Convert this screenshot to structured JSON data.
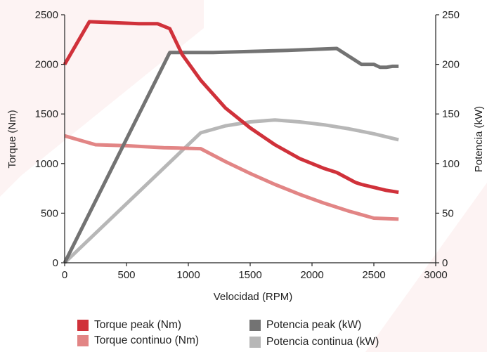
{
  "chart_data": {
    "type": "line",
    "xlabel": "Velocidad (RPM)",
    "ylabel": "Torque (Nm)",
    "ylabel_right": "Potencia (kW)",
    "xlim": [
      0,
      3000
    ],
    "ylim": [
      0,
      2500
    ],
    "ylim_right": [
      0,
      250
    ],
    "x_ticks": [
      "0",
      "500",
      "1000",
      "1500",
      "2000",
      "2500",
      "3000"
    ],
    "y_ticks": [
      "0",
      "500",
      "1000",
      "1500",
      "2000",
      "2500"
    ],
    "y_right_ticks": [
      "0",
      "50",
      "100",
      "150",
      "200",
      "250"
    ],
    "grid": false,
    "legend_position": "bottom",
    "series": [
      {
        "name": "Torque peak (Nm)",
        "axis": "left",
        "color": "#d0313a",
        "x": [
          0,
          200,
          400,
          600,
          750,
          850,
          950,
          1100,
          1300,
          1500,
          1700,
          1900,
          2100,
          2200,
          2350,
          2400,
          2500,
          2600,
          2700
        ],
        "y": [
          2000,
          2430,
          2420,
          2410,
          2410,
          2360,
          2100,
          1840,
          1560,
          1360,
          1190,
          1050,
          950,
          910,
          810,
          790,
          760,
          730,
          710
        ]
      },
      {
        "name": "Torque continuo (Nm)",
        "axis": "left",
        "color": "#e28585",
        "x": [
          0,
          250,
          500,
          800,
          1100,
          1300,
          1500,
          1700,
          1900,
          2100,
          2300,
          2500,
          2700
        ],
        "y": [
          1280,
          1190,
          1180,
          1160,
          1150,
          1020,
          900,
          790,
          690,
          600,
          520,
          450,
          440
        ]
      },
      {
        "name": "Potencia peak (kW)",
        "axis": "right",
        "color": "#737373",
        "x": [
          0,
          850,
          1000,
          1200,
          1500,
          1800,
          2000,
          2200,
          2400,
          2450,
          2500,
          2550,
          2600,
          2650,
          2700
        ],
        "y": [
          0,
          212,
          212,
          212,
          213,
          214,
          215,
          216,
          200,
          200,
          200,
          197,
          197,
          198,
          198
        ]
      },
      {
        "name": "Potencia continua (kW)",
        "axis": "right",
        "color": "#b7b7b7",
        "x": [
          0,
          1100,
          1300,
          1500,
          1700,
          1900,
          2100,
          2300,
          2500,
          2700
        ],
        "y": [
          0,
          131,
          138,
          142,
          144,
          142,
          139,
          135,
          130,
          124
        ]
      }
    ]
  },
  "legend": {
    "items": [
      {
        "label": "Torque peak (Nm)",
        "color": "#d0313a"
      },
      {
        "label": "Potencia peak (kW)",
        "color": "#737373"
      },
      {
        "label": "Torque continuo (Nm)",
        "color": "#e28585"
      },
      {
        "label": "Potencia continua (kW)",
        "color": "#b7b7b7"
      }
    ]
  }
}
